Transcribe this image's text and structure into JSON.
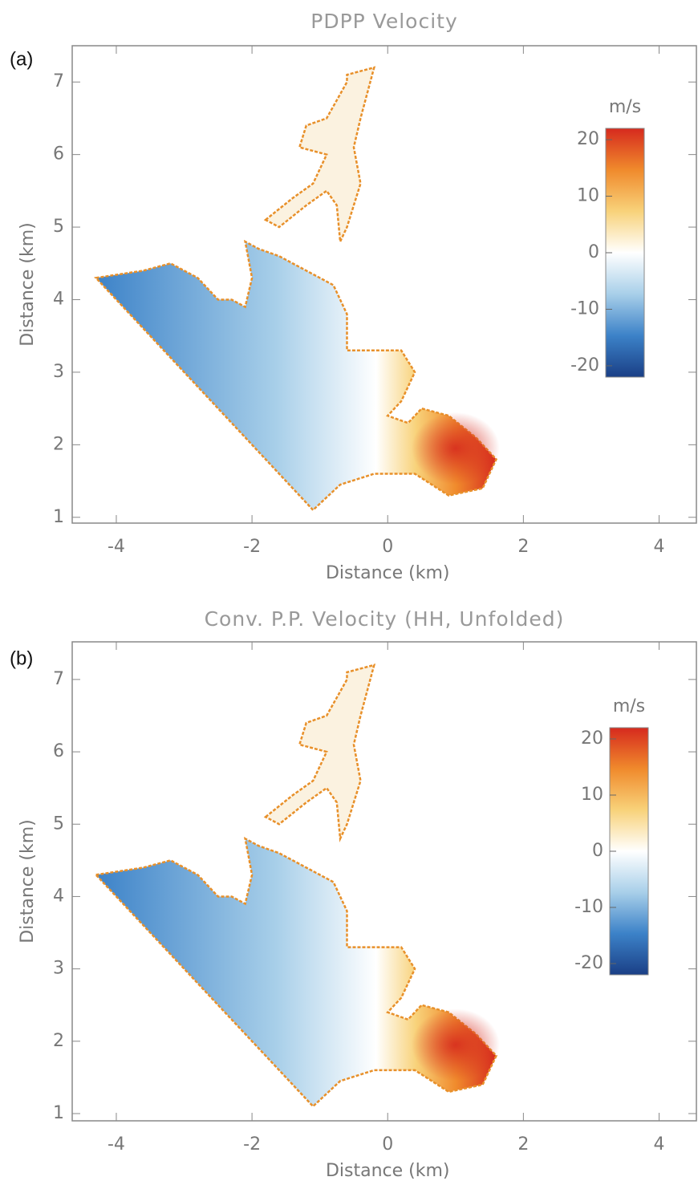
{
  "chart_data": [
    {
      "type": "map",
      "panel": "(a)",
      "title": "PDPP Velocity",
      "xlabel": "Distance (km)",
      "ylabel": "Distance (km)",
      "xlim": [
        -4.65,
        4.55
      ],
      "ylim": [
        0.92,
        7.5
      ],
      "xticks": [
        -4,
        -2,
        0,
        2,
        4
      ],
      "yticks": [
        1,
        2,
        3,
        4,
        5,
        6,
        7
      ],
      "colorbar": {
        "label": "m/s",
        "lim": [
          -22,
          22
        ],
        "ticks": [
          20,
          10,
          0,
          -10,
          -20
        ],
        "colors": [
          "#1a3f86",
          "#3c82c8",
          "#a8cfe9",
          "#ffffff",
          "#f8d27a",
          "#f08a2c",
          "#d62a1e"
        ]
      }
    },
    {
      "type": "map",
      "panel": "(b)",
      "title": "Conv. P.P. Velocity (HH, Unfolded)",
      "xlabel": "Distance (km)",
      "ylabel": "Distance (km)",
      "xlim": [
        -4.65,
        4.55
      ],
      "ylim": [
        0.9,
        7.52
      ],
      "xticks": [
        -4,
        -2,
        0,
        2,
        4
      ],
      "yticks": [
        1,
        2,
        3,
        4,
        5,
        6,
        7
      ],
      "colorbar": {
        "label": "m/s",
        "lim": [
          -22,
          22
        ],
        "ticks": [
          20,
          10,
          0,
          -10,
          -20
        ],
        "colors": [
          "#1a3f86",
          "#3c82c8",
          "#a8cfe9",
          "#ffffff",
          "#f8d27a",
          "#f08a2c",
          "#d62a1e"
        ]
      }
    }
  ]
}
